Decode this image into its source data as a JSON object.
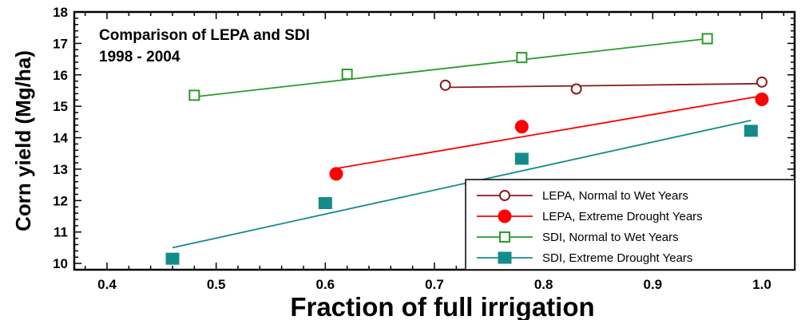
{
  "chart_data": {
    "type": "scatter",
    "title": "",
    "xlabel": "Fraction of full irrigation",
    "ylabel": "Corn yield (Mg/ha)",
    "xlim": [
      0.37,
      1.03
    ],
    "ylim": [
      9.8,
      18
    ],
    "x_ticks": [
      0.4,
      0.5,
      0.6,
      0.7,
      0.8,
      0.9,
      1.0
    ],
    "x_tick_labels": [
      "0.4",
      "0.5",
      "0.6",
      "0.7",
      "0.8",
      "0.9",
      "1.0"
    ],
    "y_ticks": [
      10,
      11,
      12,
      13,
      14,
      15,
      16,
      17,
      18
    ],
    "y_tick_labels": [
      "10",
      "11",
      "12",
      "13",
      "14",
      "15",
      "16",
      "17",
      "18"
    ],
    "annotation_lines": [
      "Comparison of LEPA and SDI",
      "1998 - 2004"
    ],
    "grid": false,
    "legend_position": "bottom-right",
    "series": [
      {
        "name": "LEPA, Normal to Wet Years",
        "color": "#8b1a1a",
        "marker": "open-circle",
        "x": [
          0.71,
          0.83,
          1.0
        ],
        "y": [
          15.67,
          15.55,
          15.77
        ],
        "fit": [
          [
            0.71,
            15.6
          ],
          [
            1.0,
            15.72
          ]
        ]
      },
      {
        "name": "LEPA, Extreme Drought Years",
        "color": "#ff0000",
        "marker": "filled-circle",
        "x": [
          0.61,
          0.78,
          1.0
        ],
        "y": [
          12.85,
          14.35,
          15.22
        ],
        "fit": [
          [
            0.61,
            13.02
          ],
          [
            1.0,
            15.33
          ]
        ]
      },
      {
        "name": "SDI,  Normal to Wet Years",
        "color": "#2a9a2a",
        "marker": "open-square",
        "x": [
          0.48,
          0.62,
          0.78,
          0.95
        ],
        "y": [
          15.35,
          16.02,
          16.55,
          17.15
        ],
        "fit": [
          [
            0.48,
            15.3
          ],
          [
            0.95,
            17.15
          ]
        ]
      },
      {
        "name": "SDI, Extreme Drought Years",
        "color": "#148b8b",
        "marker": "filled-square",
        "x": [
          0.46,
          0.6,
          0.78,
          0.99
        ],
        "y": [
          10.15,
          11.92,
          13.33,
          14.22
        ],
        "fit": [
          [
            0.46,
            10.5
          ],
          [
            0.99,
            14.55
          ]
        ]
      }
    ]
  }
}
